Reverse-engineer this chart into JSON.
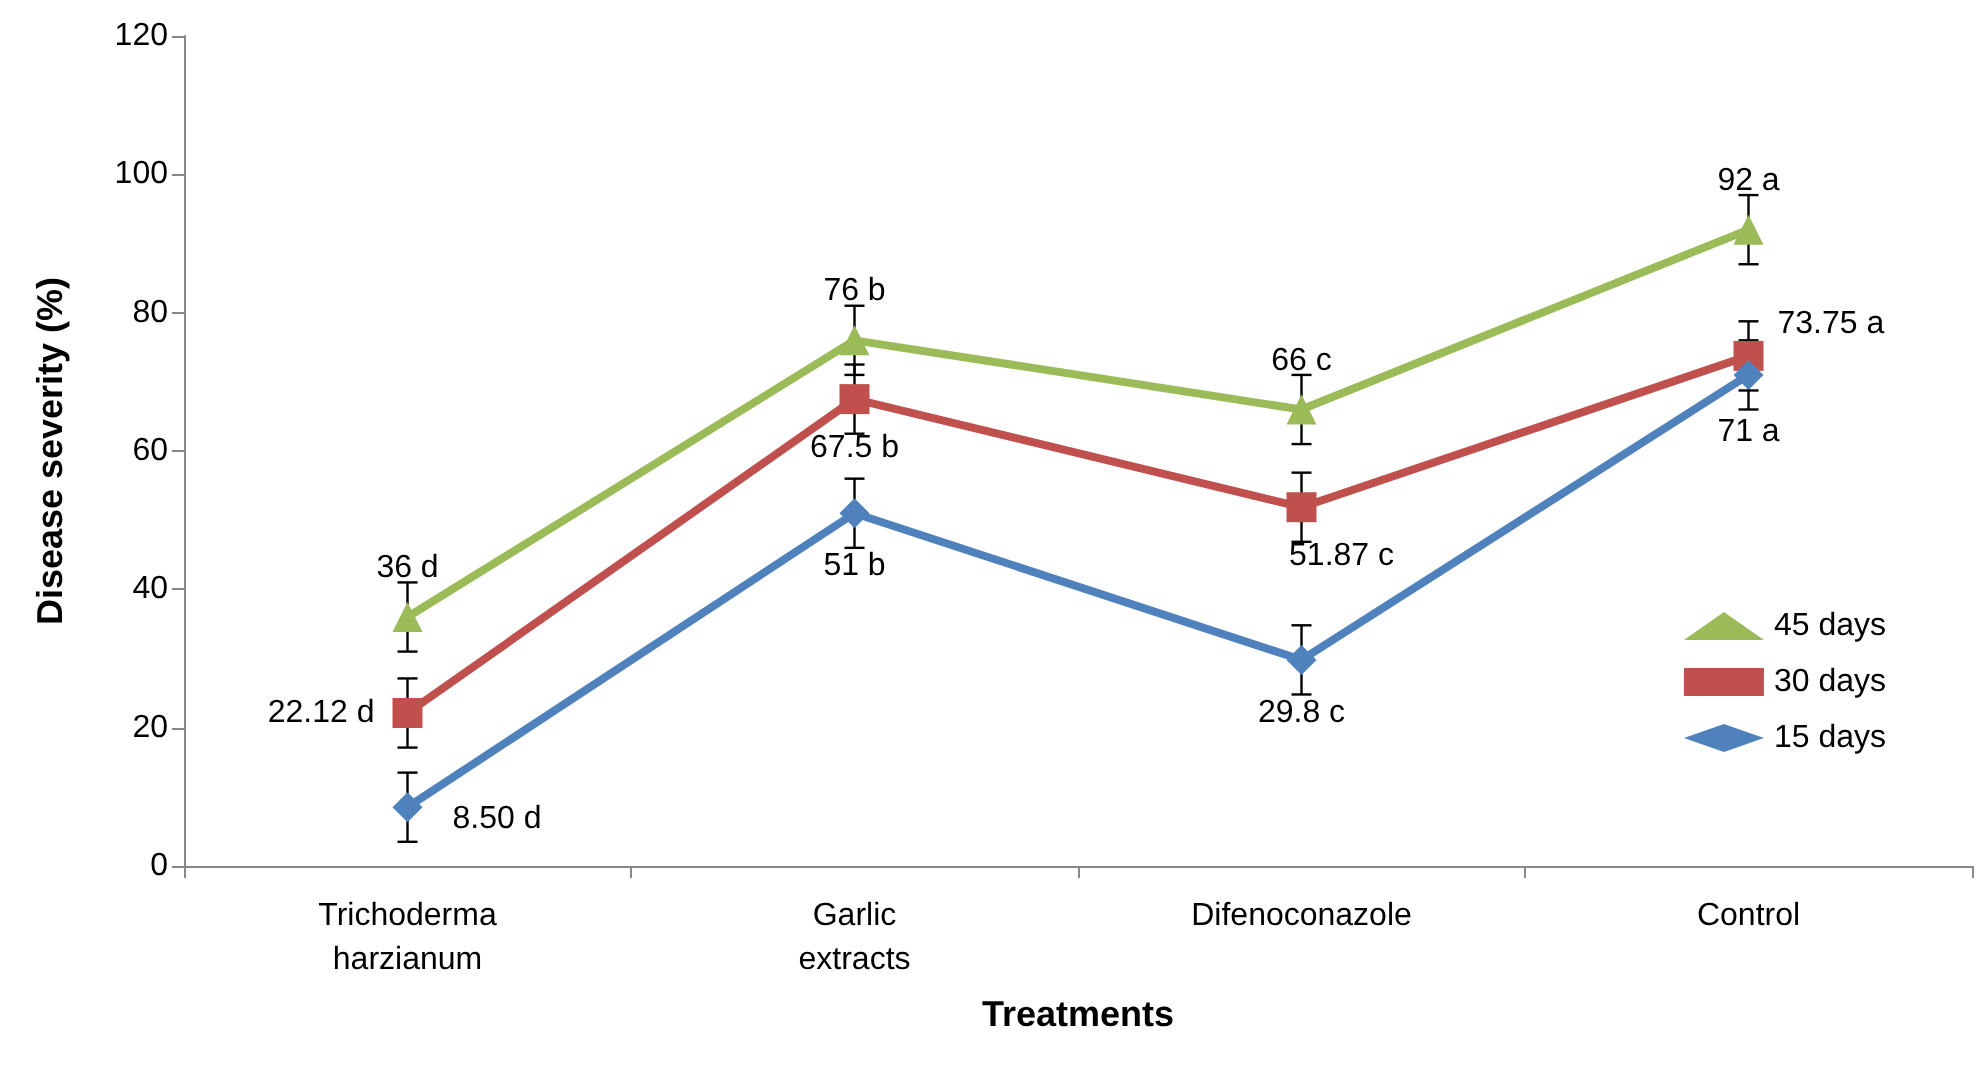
{
  "chart_data": {
    "type": "line",
    "xlabel": "Treatments",
    "ylabel": "Disease severity (%)",
    "categories": [
      "Trichoderma harzianum",
      "Garlic extracts",
      "Difenoconazole",
      "Control"
    ],
    "series": [
      {
        "name": "45 days",
        "color": "#9bbb59",
        "marker": "triangle",
        "values": [
          36,
          76,
          66,
          92
        ],
        "errors": [
          5,
          5,
          5,
          5
        ],
        "value_labels": [
          "36 d",
          "76 b",
          "66 c",
          "92 a"
        ]
      },
      {
        "name": "30 days",
        "color": "#c0504d",
        "marker": "square",
        "values": [
          22.12,
          67.5,
          51.87,
          73.75
        ],
        "errors": [
          5,
          5,
          5,
          5
        ],
        "value_labels": [
          "22.12 d",
          "67.5 b",
          "51.87 c",
          "73.75 a"
        ]
      },
      {
        "name": "15 days",
        "color": "#4f81bd",
        "marker": "diamond",
        "values": [
          8.5,
          51,
          29.8,
          71
        ],
        "errors": [
          5,
          5,
          5,
          5
        ],
        "value_labels": [
          "8.50 d",
          "51 b",
          "29.8 c",
          "71 a"
        ]
      }
    ],
    "ylim": [
      0,
      120
    ],
    "yticks": [
      0,
      20,
      40,
      60,
      80,
      100,
      120
    ],
    "grid": false,
    "legend": "right",
    "line_style": "solid"
  }
}
